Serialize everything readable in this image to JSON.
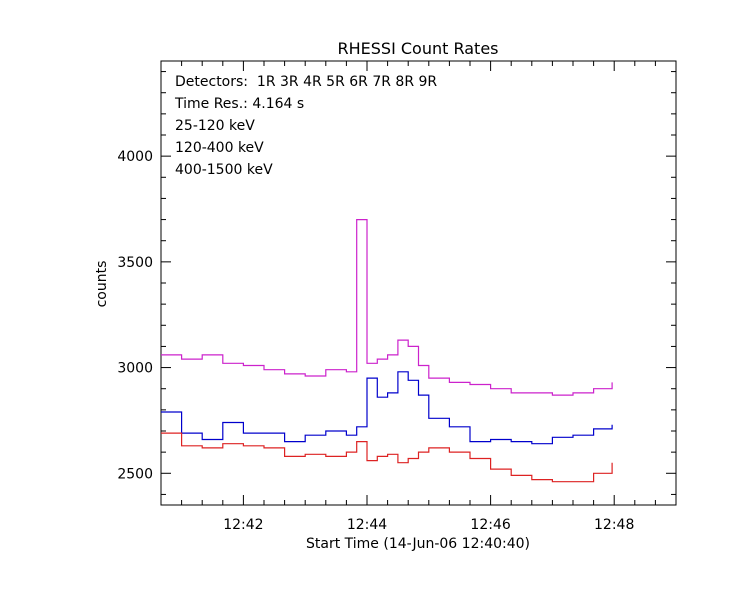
{
  "chart_data": {
    "type": "line",
    "title": "RHESSI Count Rates",
    "xlabel": "Start Time (14-Jun-06 12:40:40)",
    "ylabel": "counts",
    "x_unit": "time of day",
    "xlim": [
      "12:40:40",
      "12:49:00"
    ],
    "ylim": [
      2350,
      4450
    ],
    "xticks": [
      "12:42",
      "12:44",
      "12:46",
      "12:48"
    ],
    "yticks": [
      2500,
      3000,
      3500,
      4000
    ],
    "annotations": {
      "detectors": "Detectors:  1R 3R 4R 5R 6R 7R 8R 9R",
      "time_res": "Time Res.: 4.164 s"
    },
    "series": [
      {
        "name": "25-120 keV",
        "color": "#0000cc",
        "x": [
          "12:40:40",
          "12:41:00",
          "12:41:20",
          "12:41:40",
          "12:42:00",
          "12:42:20",
          "12:42:40",
          "12:43:00",
          "12:43:20",
          "12:43:40",
          "12:43:50",
          "12:44:00",
          "12:44:10",
          "12:44:20",
          "12:44:30",
          "12:44:40",
          "12:44:50",
          "12:45:00",
          "12:45:20",
          "12:45:40",
          "12:46:00",
          "12:46:20",
          "12:46:40",
          "12:47:00",
          "12:47:20",
          "12:47:40",
          "12:47:58"
        ],
        "y": [
          2790,
          2690,
          2660,
          2740,
          2690,
          2690,
          2650,
          2680,
          2700,
          2680,
          2720,
          2950,
          2860,
          2880,
          2980,
          2940,
          2870,
          2760,
          2720,
          2650,
          2660,
          2650,
          2640,
          2670,
          2680,
          2710,
          2730
        ]
      },
      {
        "name": "120-400 keV",
        "color": "#cc22cc",
        "x": [
          "12:40:40",
          "12:41:00",
          "12:41:20",
          "12:41:40",
          "12:42:00",
          "12:42:20",
          "12:42:40",
          "12:43:00",
          "12:43:20",
          "12:43:40",
          "12:43:50",
          "12:44:00",
          "12:44:10",
          "12:44:20",
          "12:44:30",
          "12:44:40",
          "12:44:50",
          "12:45:00",
          "12:45:20",
          "12:45:40",
          "12:46:00",
          "12:46:20",
          "12:46:40",
          "12:47:00",
          "12:47:20",
          "12:47:40",
          "12:47:58"
        ],
        "y": [
          3060,
          3040,
          3060,
          3020,
          3010,
          2990,
          2970,
          2960,
          2990,
          2980,
          3700,
          3020,
          3040,
          3060,
          3130,
          3100,
          3010,
          2950,
          2930,
          2920,
          2900,
          2880,
          2880,
          2870,
          2880,
          2900,
          2930
        ]
      },
      {
        "name": "400-1500 keV",
        "color": "#dd2222",
        "x": [
          "12:40:40",
          "12:41:00",
          "12:41:20",
          "12:41:40",
          "12:42:00",
          "12:42:20",
          "12:42:40",
          "12:43:00",
          "12:43:20",
          "12:43:40",
          "12:43:50",
          "12:44:00",
          "12:44:10",
          "12:44:20",
          "12:44:30",
          "12:44:40",
          "12:44:50",
          "12:45:00",
          "12:45:20",
          "12:45:40",
          "12:46:00",
          "12:46:20",
          "12:46:40",
          "12:47:00",
          "12:47:20",
          "12:47:40",
          "12:47:58"
        ],
        "y": [
          2690,
          2630,
          2620,
          2640,
          2630,
          2620,
          2580,
          2590,
          2580,
          2600,
          2650,
          2560,
          2580,
          2590,
          2550,
          2570,
          2600,
          2620,
          2600,
          2570,
          2520,
          2490,
          2470,
          2460,
          2460,
          2500,
          2550
        ]
      }
    ]
  }
}
